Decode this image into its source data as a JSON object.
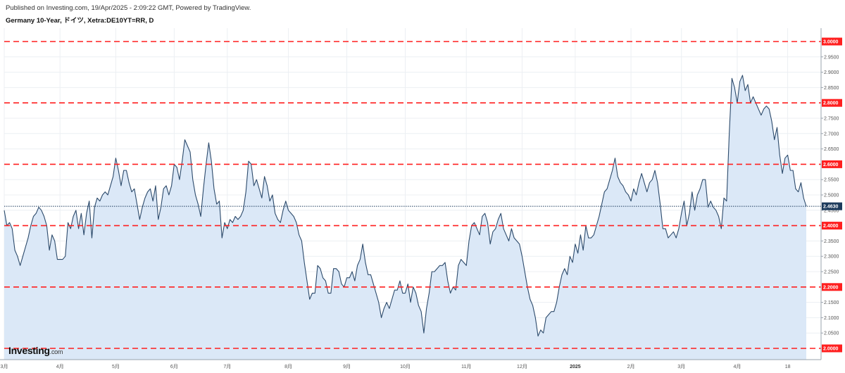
{
  "header": {
    "published": "Published on Investing.com, 19/Apr/2025 - 2:09:22 GMT, Powered by TradingView.",
    "title": "Germany 10-Year, ドイツ, Xetra:DE10YT=RR, D"
  },
  "logo": {
    "main": "Investing",
    "suffix": ".com"
  },
  "colors": {
    "line": "#2c4a6b",
    "area": "#dbe8f7",
    "level": "#ff1f1f",
    "last_tag": "#1d3b5c",
    "grid": "#eceff3"
  },
  "chart_data": {
    "type": "area",
    "title": "Germany 10-Year, ドイツ, Xetra:DE10YT=RR, D",
    "ylim": [
      2.0,
      3.0
    ],
    "y_ticks": [
      "2.0500",
      "2.1000",
      "2.1500",
      "2.2500",
      "2.3000",
      "2.3500",
      "2.4500",
      "2.5000",
      "2.5500",
      "2.6500",
      "2.7000",
      "2.7500",
      "2.8500",
      "2.9000",
      "2.9500"
    ],
    "levels": [
      "2.0000",
      "2.2000",
      "2.4000",
      "2.6000",
      "2.8000",
      "3.0000"
    ],
    "last_value": "2.4630",
    "x_labels": [
      "3月",
      "4月",
      "5月",
      "6月",
      "7月",
      "8月",
      "9月",
      "10月",
      "11月",
      "12月",
      "2025",
      "2月",
      "3月",
      "4月",
      "18"
    ],
    "x_label_index": [
      0,
      21,
      42,
      64,
      84,
      107,
      129,
      151,
      174,
      195,
      215,
      236,
      255,
      276,
      295
    ],
    "values": [
      2.45,
      2.4,
      2.41,
      2.39,
      2.32,
      2.3,
      2.27,
      2.3,
      2.33,
      2.36,
      2.4,
      2.43,
      2.44,
      2.46,
      2.45,
      2.43,
      2.4,
      2.32,
      2.37,
      2.35,
      2.29,
      2.29,
      2.29,
      2.3,
      2.41,
      2.39,
      2.43,
      2.45,
      2.39,
      2.44,
      2.37,
      2.44,
      2.48,
      2.36,
      2.46,
      2.49,
      2.48,
      2.5,
      2.51,
      2.5,
      2.53,
      2.56,
      2.62,
      2.58,
      2.53,
      2.58,
      2.58,
      2.54,
      2.51,
      2.52,
      2.47,
      2.42,
      2.46,
      2.49,
      2.51,
      2.52,
      2.48,
      2.53,
      2.42,
      2.46,
      2.52,
      2.53,
      2.5,
      2.53,
      2.6,
      2.59,
      2.55,
      2.61,
      2.68,
      2.66,
      2.64,
      2.55,
      2.5,
      2.47,
      2.43,
      2.52,
      2.6,
      2.67,
      2.61,
      2.52,
      2.47,
      2.48,
      2.36,
      2.41,
      2.39,
      2.42,
      2.41,
      2.43,
      2.42,
      2.43,
      2.45,
      2.51,
      2.61,
      2.6,
      2.53,
      2.55,
      2.52,
      2.49,
      2.56,
      2.53,
      2.48,
      2.5,
      2.44,
      2.42,
      2.41,
      2.45,
      2.48,
      2.45,
      2.44,
      2.43,
      2.41,
      2.37,
      2.35,
      2.28,
      2.22,
      2.16,
      2.18,
      2.18,
      2.27,
      2.26,
      2.23,
      2.22,
      2.18,
      2.18,
      2.26,
      2.26,
      2.25,
      2.21,
      2.2,
      2.23,
      2.23,
      2.25,
      2.22,
      2.27,
      2.29,
      2.34,
      2.28,
      2.24,
      2.24,
      2.21,
      2.18,
      2.15,
      2.1,
      2.13,
      2.15,
      2.13,
      2.16,
      2.19,
      2.19,
      2.22,
      2.18,
      2.18,
      2.21,
      2.15,
      2.2,
      2.18,
      2.14,
      2.12,
      2.05,
      2.13,
      2.18,
      2.25,
      2.25,
      2.26,
      2.27,
      2.27,
      2.28,
      2.22,
      2.18,
      2.2,
      2.19,
      2.27,
      2.29,
      2.28,
      2.27,
      2.35,
      2.4,
      2.41,
      2.39,
      2.37,
      2.43,
      2.44,
      2.41,
      2.34,
      2.38,
      2.39,
      2.42,
      2.44,
      2.39,
      2.37,
      2.35,
      2.39,
      2.36,
      2.35,
      2.34,
      2.3,
      2.25,
      2.2,
      2.16,
      2.14,
      2.1,
      2.04,
      2.06,
      2.05,
      2.1,
      2.11,
      2.12,
      2.12,
      2.15,
      2.2,
      2.24,
      2.26,
      2.24,
      2.3,
      2.28,
      2.34,
      2.31,
      2.37,
      2.32,
      2.4,
      2.36,
      2.36,
      2.37,
      2.4,
      2.43,
      2.47,
      2.51,
      2.52,
      2.55,
      2.58,
      2.62,
      2.56,
      2.54,
      2.53,
      2.51,
      2.5,
      2.48,
      2.52,
      2.5,
      2.54,
      2.57,
      2.54,
      2.51,
      2.54,
      2.55,
      2.58,
      2.54,
      2.47,
      2.39,
      2.39,
      2.36,
      2.37,
      2.38,
      2.36,
      2.39,
      2.44,
      2.48,
      2.4,
      2.44,
      2.51,
      2.45,
      2.5,
      2.52,
      2.55,
      2.55,
      2.46,
      2.48,
      2.46,
      2.45,
      2.43,
      2.39,
      2.49,
      2.48,
      2.7,
      2.88,
      2.85,
      2.8,
      2.87,
      2.89,
      2.84,
      2.86,
      2.8,
      2.82,
      2.8,
      2.78,
      2.76,
      2.78,
      2.79,
      2.78,
      2.74,
      2.68,
      2.72,
      2.63,
      2.57,
      2.62,
      2.63,
      2.58,
      2.58,
      2.52,
      2.51,
      2.54,
      2.49,
      2.463
    ]
  }
}
